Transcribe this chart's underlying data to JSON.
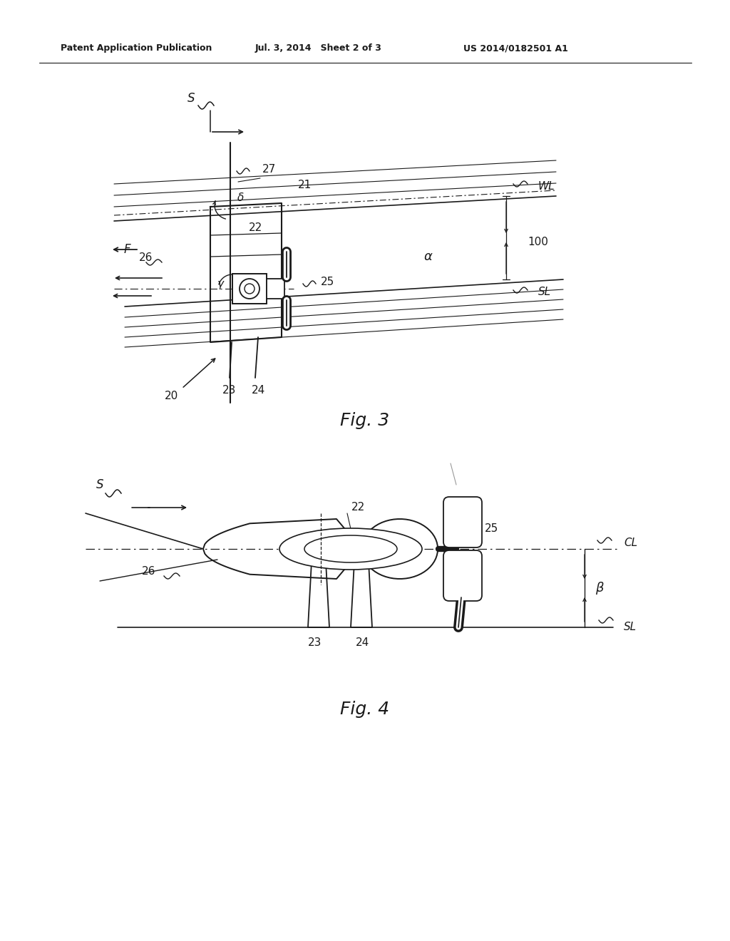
{
  "bg_color": "#ffffff",
  "line_color": "#1a1a1a",
  "header_text": "Patent Application Publication",
  "header_date": "Jul. 3, 2014   Sheet 2 of 3",
  "header_patent": "US 2014/0182501 A1",
  "fig3_label": "Fig. 3",
  "fig4_label": "Fig. 4"
}
